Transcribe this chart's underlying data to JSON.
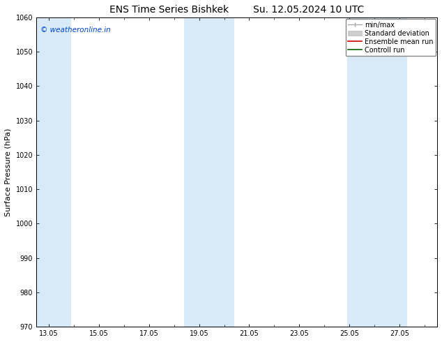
{
  "title": "ENS Time Series Bishkek",
  "subtitle": "Su. 12.05.2024 10 UTC",
  "ylabel": "Surface Pressure (hPa)",
  "ylim": [
    970,
    1060
  ],
  "yticks": [
    970,
    980,
    990,
    1000,
    1010,
    1020,
    1030,
    1040,
    1050,
    1060
  ],
  "xmin": 12.5,
  "xmax": 28.5,
  "tick_x_positions": [
    13,
    15,
    17,
    19,
    21,
    23,
    25,
    27
  ],
  "xtick_labels": [
    "13.05",
    "15.05",
    "17.05",
    "19.05",
    "21.05",
    "23.05",
    "25.05",
    "27.05"
  ],
  "shaded_bands": [
    {
      "x_start": 12.5,
      "x_end": 13.9,
      "color": "#d8eaf8"
    },
    {
      "x_start": 18.4,
      "x_end": 20.4,
      "color": "#d8eaf8"
    },
    {
      "x_start": 24.9,
      "x_end": 27.3,
      "color": "#d8eaf8"
    }
  ],
  "watermark": "© weatheronline.in",
  "watermark_color": "#0044cc",
  "background_color": "#ffffff",
  "plot_bg_color": "#ffffff",
  "title_fontsize": 10,
  "tick_fontsize": 7,
  "label_fontsize": 8,
  "legend_fontsize": 7
}
